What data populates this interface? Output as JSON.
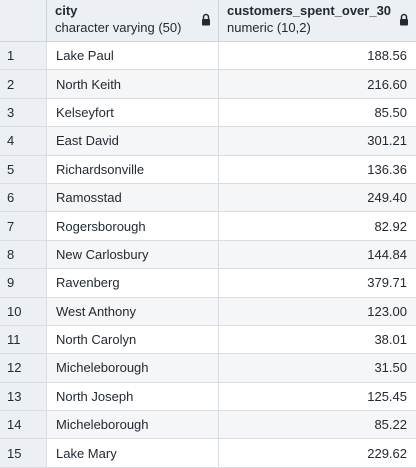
{
  "columns": {
    "city": {
      "name": "city",
      "type": "character varying (50)"
    },
    "spent": {
      "name": "customers_spent_over_30",
      "type": "numeric (10,2)"
    }
  },
  "rows": [
    {
      "n": "1",
      "city": "Lake Paul",
      "spent": "188.56"
    },
    {
      "n": "2",
      "city": "North Keith",
      "spent": "216.60"
    },
    {
      "n": "3",
      "city": "Kelseyfort",
      "spent": "85.50"
    },
    {
      "n": "4",
      "city": "East David",
      "spent": "301.21"
    },
    {
      "n": "5",
      "city": "Richardsonville",
      "spent": "136.36"
    },
    {
      "n": "6",
      "city": "Ramosstad",
      "spent": "249.40"
    },
    {
      "n": "7",
      "city": "Rogersborough",
      "spent": "82.92"
    },
    {
      "n": "8",
      "city": "New Carlosbury",
      "spent": "144.84"
    },
    {
      "n": "9",
      "city": "Ravenberg",
      "spent": "379.71"
    },
    {
      "n": "10",
      "city": "West Anthony",
      "spent": "123.00"
    },
    {
      "n": "11",
      "city": "North Carolyn",
      "spent": "38.01"
    },
    {
      "n": "12",
      "city": "Micheleborough",
      "spent": "31.50"
    },
    {
      "n": "13",
      "city": "North Joseph",
      "spent": "125.45"
    },
    {
      "n": "14",
      "city": "Micheleborough",
      "spent": "85.22"
    },
    {
      "n": "15",
      "city": "Lake Mary",
      "spent": "229.62"
    }
  ]
}
